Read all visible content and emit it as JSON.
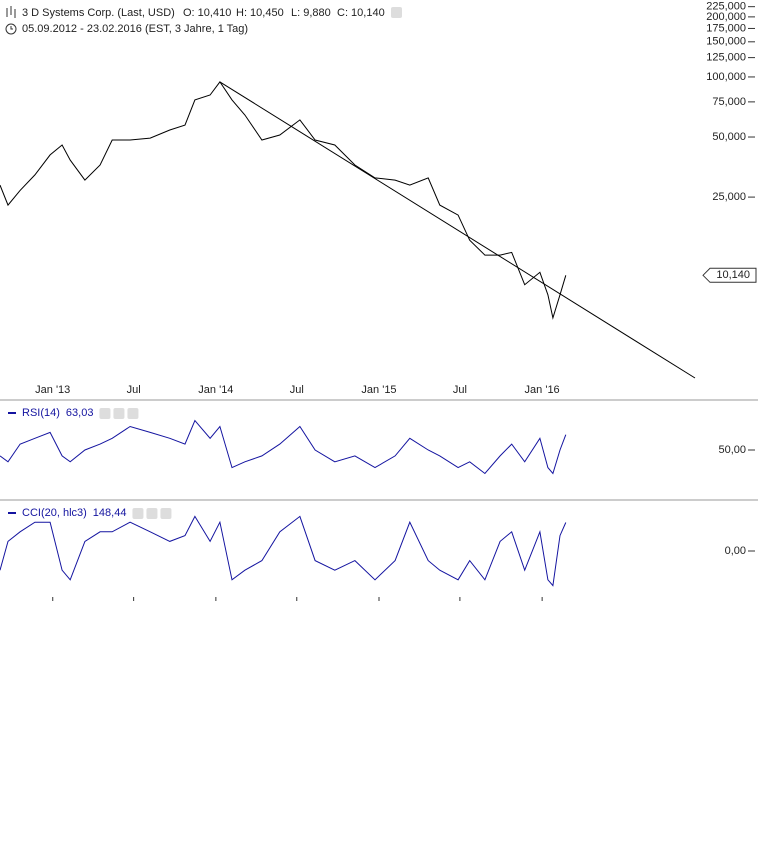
{
  "header": {
    "title": "3 D Systems Corp. (Last, USD)",
    "quote": [
      "O: 10,410",
      "H: 10,450",
      "L: 9,880",
      "C: 10,140"
    ],
    "range": "05.09.2012 - 23.02.2016 (EST, 3 Jahre, 1 Tag)"
  },
  "chart_data": [
    {
      "type": "line",
      "log_scale": true,
      "color": "#000000",
      "x": [
        "2012-09-05",
        "2012-09-23",
        "2012-10-20",
        "2012-11-22",
        "2012-12-26",
        "2013-01-22",
        "2013-02-09",
        "2013-03-14",
        "2013-04-17",
        "2013-05-14",
        "2013-06-23",
        "2013-08-07",
        "2013-09-20",
        "2013-10-24",
        "2013-11-15",
        "2013-12-19",
        "2014-01-10",
        "2014-02-06",
        "2014-03-07",
        "2014-04-14",
        "2014-05-24",
        "2014-07-08",
        "2014-08-11",
        "2014-09-24",
        "2014-11-08",
        "2014-12-23",
        "2015-02-06",
        "2015-03-11",
        "2015-04-21",
        "2015-05-17",
        "2015-06-27",
        "2015-07-23",
        "2015-08-26",
        "2015-09-29",
        "2015-10-25",
        "2015-11-23",
        "2015-12-27",
        "2016-01-14",
        "2016-01-25",
        "2016-02-10",
        "2016-02-23"
      ],
      "values": [
        28.7,
        22.8,
        27,
        32.3,
        40.7,
        45.6,
        38.3,
        30.4,
        36.2,
        48.3,
        48.3,
        49.4,
        54.2,
        57.4,
        76.7,
        81.2,
        94.4,
        76.7,
        64.5,
        48.3,
        51.2,
        60.9,
        48.3,
        45.6,
        36.2,
        31.2,
        30.4,
        28.7,
        31.2,
        22.8,
        20.3,
        15.2,
        12.8,
        12.8,
        13.2,
        9.1,
        10.5,
        8.1,
        6.2,
        8.1,
        10.14
      ],
      "trendline": {
        "x": [
          "2014-01-10",
          "2016-12-08"
        ],
        "values": [
          94.4,
          3.1
        ],
        "color": "#000000"
      },
      "last_value": {
        "value": 10.14,
        "label": "10,140"
      },
      "xlim": [
        "2012-09-05",
        "2017-04-28"
      ],
      "xticks": [
        {
          "value": "2013-01-01",
          "label": "Jan '13"
        },
        {
          "value": "2013-07-01",
          "label": "Jul"
        },
        {
          "value": "2014-01-01",
          "label": "Jan '14"
        },
        {
          "value": "2014-07-01",
          "label": "Jul"
        },
        {
          "value": "2015-01-01",
          "label": "Jan '15"
        },
        {
          "value": "2015-07-01",
          "label": "Jul"
        },
        {
          "value": "2016-01-01",
          "label": "Jan '16"
        }
      ],
      "ylim": [
        3.1,
        243
      ],
      "yticks": [
        {
          "value": 225,
          "label": "225,000"
        },
        {
          "value": 200,
          "label": "200,000"
        },
        {
          "value": 175,
          "label": "175,000"
        },
        {
          "value": 150,
          "label": "150,000"
        },
        {
          "value": 125,
          "label": "125,000"
        },
        {
          "value": 100,
          "label": "100,000"
        },
        {
          "value": 75,
          "label": "75,000"
        },
        {
          "value": 50,
          "label": "50,000"
        },
        {
          "value": 25,
          "label": "25,000"
        }
      ]
    },
    {
      "type": "line",
      "xlim": [
        "2012-09-05",
        "2017-04-28"
      ],
      "x": [
        "2012-09-05",
        "2012-09-23",
        "2012-10-20",
        "2012-11-22",
        "2012-12-26",
        "2013-01-22",
        "2013-02-09",
        "2013-03-14",
        "2013-04-17",
        "2013-05-14",
        "2013-06-23",
        "2013-08-07",
        "2013-09-20",
        "2013-10-24",
        "2013-11-15",
        "2013-12-19",
        "2014-01-10",
        "2014-02-06",
        "2014-03-07",
        "2014-04-14",
        "2014-05-24",
        "2014-07-08",
        "2014-08-11",
        "2014-09-24",
        "2014-11-08",
        "2014-12-23",
        "2015-02-06",
        "2015-03-11",
        "2015-04-21",
        "2015-05-17",
        "2015-06-27",
        "2015-07-23",
        "2015-08-26",
        "2015-09-29",
        "2015-10-25",
        "2015-11-23",
        "2015-12-27",
        "2016-01-14",
        "2016-01-25",
        "2016-02-10",
        "2016-02-23"
      ],
      "series": [
        {
          "name": "RSI(14)",
          "color": "#1414a0",
          "values": [
            45,
            40,
            55,
            60,
            65,
            45,
            40,
            50,
            55,
            60,
            70,
            65,
            60,
            55,
            75,
            60,
            70,
            35,
            40,
            45,
            55,
            70,
            50,
            40,
            45,
            35,
            45,
            60,
            50,
            45,
            35,
            40,
            30,
            45,
            55,
            40,
            60,
            35,
            30,
            50,
            63.03
          ]
        }
      ],
      "last": {
        "value": 63.03,
        "label": "63,03"
      },
      "ylim": [
        10,
        90
      ],
      "yticks": [
        {
          "value": 50,
          "label": "50,00"
        }
      ]
    },
    {
      "type": "line",
      "xlim": [
        "2012-09-05",
        "2017-04-28"
      ],
      "x": [
        "2012-09-05",
        "2012-09-23",
        "2012-10-20",
        "2012-11-22",
        "2012-12-26",
        "2013-01-22",
        "2013-02-09",
        "2013-03-14",
        "2013-04-17",
        "2013-05-14",
        "2013-06-23",
        "2013-08-07",
        "2013-09-20",
        "2013-10-24",
        "2013-11-15",
        "2013-12-19",
        "2014-01-10",
        "2014-02-06",
        "2014-03-07",
        "2014-04-14",
        "2014-05-24",
        "2014-07-08",
        "2014-08-11",
        "2014-09-24",
        "2014-11-08",
        "2014-12-23",
        "2015-02-06",
        "2015-03-11",
        "2015-04-21",
        "2015-05-17",
        "2015-06-27",
        "2015-07-23",
        "2015-08-26",
        "2015-09-29",
        "2015-10-25",
        "2015-11-23",
        "2015-12-27",
        "2016-01-14",
        "2016-01-25",
        "2016-02-10",
        "2016-02-23"
      ],
      "series": [
        {
          "name": "CCI(20, hlc3)",
          "color": "#1414a0",
          "values": [
            -100,
            50,
            100,
            150,
            150,
            -100,
            -150,
            50,
            100,
            100,
            150,
            100,
            50,
            80,
            180,
            50,
            150,
            -150,
            -100,
            -50,
            100,
            180,
            -50,
            -100,
            -50,
            -150,
            -50,
            150,
            -50,
            -100,
            -150,
            -50,
            -150,
            50,
            100,
            -100,
            100,
            -150,
            -180,
            80,
            148.44
          ]
        }
      ],
      "last": {
        "value": 148.44,
        "label": "148,44"
      },
      "ylim": [
        -250,
        250
      ],
      "yticks": [
        {
          "value": 0,
          "label": "0,00"
        }
      ]
    }
  ]
}
